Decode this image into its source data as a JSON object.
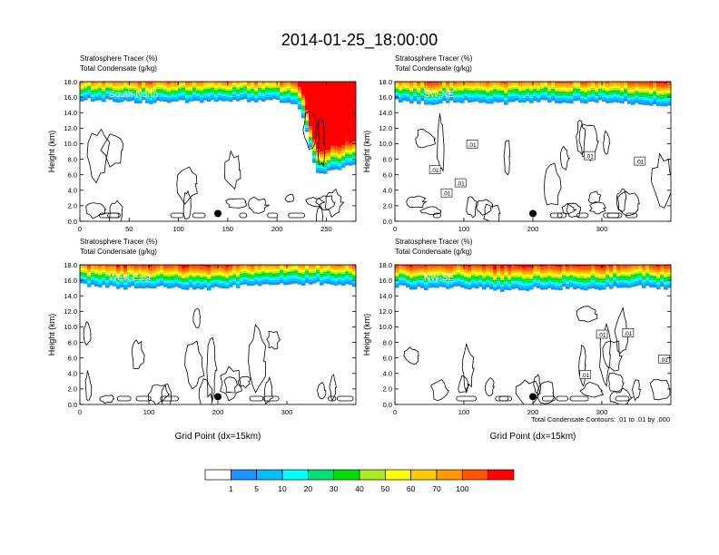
{
  "figure": {
    "title": "2014-01-25_18:00:00",
    "footnote": "Total Condensate Contours: .01 to .01 by .000"
  },
  "chart_data": [
    {
      "type": "heatmap",
      "panel_label": "South-North",
      "subtitle_lines": [
        "Stratosphere Tracer   (%)",
        "Total Condensate   (g/kg)"
      ],
      "ylabel": "Height (km)",
      "xlabel": "",
      "xlim": [
        0,
        280
      ],
      "ylim": [
        0,
        18
      ],
      "x_ticks": [
        "0",
        "50",
        "100",
        "150",
        "200",
        "250"
      ],
      "x_tick_values": [
        0,
        50,
        100,
        150,
        200,
        250
      ],
      "y_ticks": [
        "0.0",
        "2.0",
        "4.0",
        "6.0",
        "8.0",
        "10.0",
        "12.0",
        "14.0",
        "16.0",
        "18.0"
      ],
      "y_tick_values": [
        0,
        2,
        4,
        6,
        8,
        10,
        12,
        14,
        16,
        18
      ],
      "tracer_base_profile": [
        [
          0,
          15.7
        ],
        [
          40,
          15.5
        ],
        [
          80,
          15.3
        ],
        [
          120,
          15.5
        ],
        [
          160,
          15.6
        ],
        [
          200,
          15.5
        ],
        [
          220,
          15.3
        ],
        [
          228,
          13.0
        ],
        [
          232,
          10.5
        ],
        [
          236,
          8.0
        ],
        [
          242,
          6.2
        ],
        [
          252,
          6.3
        ],
        [
          262,
          6.8
        ],
        [
          272,
          7.2
        ],
        [
          280,
          7.5
        ]
      ],
      "contour_labels": [],
      "marker": {
        "x": 140,
        "y": 1.0
      }
    },
    {
      "type": "heatmap",
      "panel_label": "SW-NE",
      "subtitle_lines": [
        "Stratosphere Tracer   (%)",
        "Total Condensate   (g/kg)"
      ],
      "ylabel": "Height (km)",
      "xlabel": "",
      "xlim": [
        0,
        400
      ],
      "ylim": [
        0,
        18
      ],
      "x_ticks": [
        "0",
        "100",
        "200",
        "300"
      ],
      "x_tick_values": [
        0,
        100,
        200,
        300
      ],
      "y_ticks": [
        "0.0",
        "2.0",
        "4.0",
        "6.0",
        "8.0",
        "10.0",
        "12.0",
        "14.0",
        "16.0",
        "18.0"
      ],
      "y_tick_values": [
        0,
        2,
        4,
        6,
        8,
        10,
        12,
        14,
        16,
        18
      ],
      "tracer_base_profile": [
        [
          0,
          15.5
        ],
        [
          50,
          15.2
        ],
        [
          100,
          15.4
        ],
        [
          150,
          15.1
        ],
        [
          200,
          15.5
        ],
        [
          250,
          15.3
        ],
        [
          300,
          15.5
        ],
        [
          350,
          15.2
        ],
        [
          400,
          15.0
        ]
      ],
      "contour_labels": [
        {
          "text": ".01",
          "x": 58,
          "y": 6.6
        },
        {
          "text": ".01",
          "x": 75,
          "y": 3.6
        },
        {
          "text": ".01",
          "x": 95,
          "y": 4.9
        },
        {
          "text": ".01",
          "x": 112,
          "y": 9.9
        },
        {
          "text": ".01",
          "x": 282,
          "y": 8.4
        },
        {
          "text": ".01",
          "x": 355,
          "y": 7.7
        }
      ],
      "marker": {
        "x": 200,
        "y": 1.0
      }
    },
    {
      "type": "heatmap",
      "panel_label": "West-East",
      "subtitle_lines": [
        "Stratosphere Tracer   (%)",
        "Total Condensate   (g/kg)"
      ],
      "ylabel": "Height (km)",
      "xlabel": "Grid Point (dx=15km)",
      "xlim": [
        0,
        400
      ],
      "ylim": [
        0,
        18
      ],
      "x_ticks": [
        "0",
        "100",
        "200",
        "300"
      ],
      "x_tick_values": [
        0,
        100,
        200,
        300
      ],
      "y_ticks": [
        "0.0",
        "2.0",
        "4.0",
        "6.0",
        "8.0",
        "10.0",
        "12.0",
        "14.0",
        "16.0",
        "18.0"
      ],
      "y_tick_values": [
        0,
        2,
        4,
        6,
        8,
        10,
        12,
        14,
        16,
        18
      ],
      "tracer_base_profile": [
        [
          0,
          15.4
        ],
        [
          60,
          15.0
        ],
        [
          120,
          15.2
        ],
        [
          170,
          14.8
        ],
        [
          230,
          15.2
        ],
        [
          290,
          15.4
        ],
        [
          340,
          15.6
        ],
        [
          400,
          15.3
        ]
      ],
      "contour_labels": [],
      "marker": {
        "x": 200,
        "y": 1.0
      }
    },
    {
      "type": "heatmap",
      "panel_label": "NW-SE",
      "subtitle_lines": [
        "Stratosphere Tracer   (%)",
        "Total Condensate   (g/kg)"
      ],
      "ylabel": "Height (km)",
      "xlabel": "Grid Point (dx=15km)",
      "xlim": [
        0,
        400
      ],
      "ylim": [
        0,
        18
      ],
      "x_ticks": [
        "0",
        "100",
        "200",
        "300"
      ],
      "x_tick_values": [
        0,
        100,
        200,
        300
      ],
      "y_ticks": [
        "0.0",
        "2.0",
        "4.0",
        "6.0",
        "8.0",
        "10.0",
        "12.0",
        "14.0",
        "16.0",
        "18.0"
      ],
      "y_tick_values": [
        0,
        2,
        4,
        6,
        8,
        10,
        12,
        14,
        16,
        18
      ],
      "tracer_base_profile": [
        [
          0,
          15.2
        ],
        [
          50,
          14.9
        ],
        [
          100,
          15.1
        ],
        [
          160,
          14.7
        ],
        [
          220,
          15.0
        ],
        [
          280,
          14.9
        ],
        [
          340,
          15.2
        ],
        [
          400,
          15.0
        ]
      ],
      "contour_labels": [
        {
          "text": ".01",
          "x": 300,
          "y": 9.0
        },
        {
          "text": ".01",
          "x": 338,
          "y": 9.2
        },
        {
          "text": ".01",
          "x": 390,
          "y": 5.8
        },
        {
          "text": ".01",
          "x": 276,
          "y": 3.8
        }
      ],
      "marker": {
        "x": 200,
        "y": 1.0
      }
    }
  ],
  "colorbar": {
    "colors": [
      "#ffffff",
      "#1e90ff",
      "#00bfff",
      "#00ffff",
      "#00e07a",
      "#00e000",
      "#aaee22",
      "#ffff00",
      "#ffcc00",
      "#ff9900",
      "#ff5500",
      "#ff0000"
    ],
    "labels": [
      "1",
      "5",
      "10",
      "20",
      "30",
      "40",
      "50",
      "60",
      "70",
      "100"
    ]
  }
}
